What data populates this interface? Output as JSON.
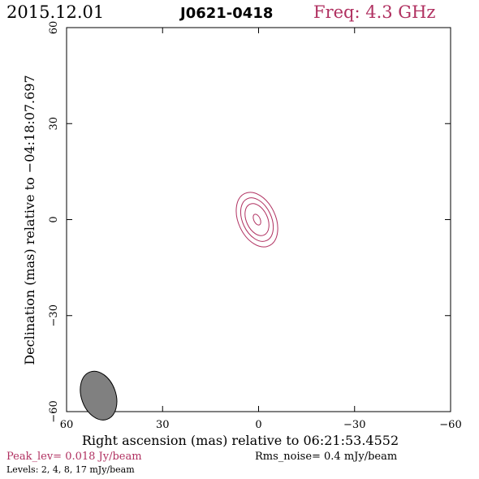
{
  "header": {
    "date": "2015.12.01",
    "source": "J0621-0418",
    "freq": "Freq: 4.3 GHz"
  },
  "footer": {
    "peak": "Peak_lev=  0.018 Jy/beam",
    "rms": "Rms_noise=   0.4 mJy/beam",
    "levels": "Levels:   2,    4,    8,   17  mJy/beam"
  },
  "colors": {
    "accent": "#b03060",
    "axis": "#000000",
    "beam_fill": "#808080"
  },
  "chart_data": {
    "type": "contour",
    "title": "J0621-0418",
    "xlabel": "Right ascension (mas) relative to 06:21:53.4552",
    "ylabel": "Declination (mas) relative to −04:18:07.697",
    "xlim": [
      60,
      -60
    ],
    "ylim": [
      -60,
      60
    ],
    "xticks": [
      60,
      30,
      0,
      -30,
      -60
    ],
    "yticks": [
      60,
      30,
      0,
      -30,
      -60
    ],
    "xtick_labels": [
      "60",
      "30",
      "0",
      "−30",
      "−60"
    ],
    "ytick_labels": [
      "60",
      "30",
      "0",
      "−30",
      "−60"
    ],
    "contours": [
      {
        "level": 2,
        "unit": "mJy/beam",
        "center": [
          0.5,
          0
        ],
        "semi_major": 9.0,
        "semi_minor": 5.8,
        "pa": 25
      },
      {
        "level": 4,
        "unit": "mJy/beam",
        "center": [
          0.5,
          0
        ],
        "semi_major": 7.2,
        "semi_minor": 4.5,
        "pa": 25
      },
      {
        "level": 8,
        "unit": "mJy/beam",
        "center": [
          0.5,
          0
        ],
        "semi_major": 5.3,
        "semi_minor": 3.3,
        "pa": 25
      },
      {
        "level": 17,
        "unit": "mJy/beam",
        "center": [
          0.5,
          0
        ],
        "semi_major": 1.8,
        "semi_minor": 1.0,
        "pa": 25
      }
    ],
    "beam": {
      "center": [
        50,
        -55
      ],
      "major": 8.5,
      "minor": 5.8,
      "pa": 20
    }
  }
}
